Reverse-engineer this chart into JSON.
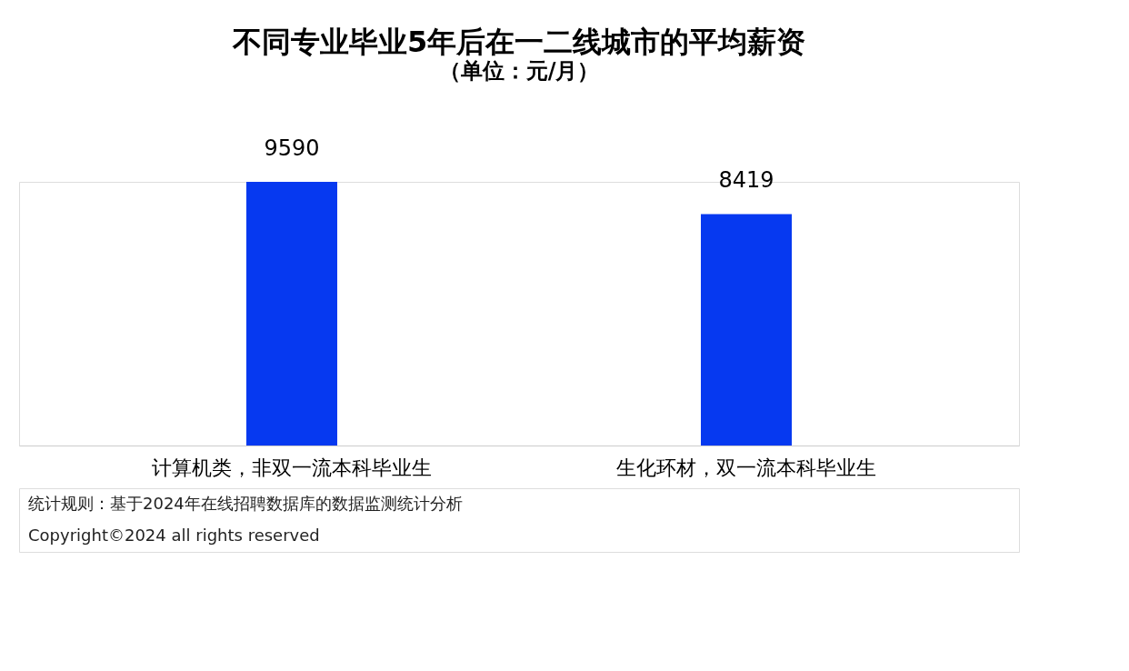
{
  "chart_data": {
    "type": "bar",
    "title": "不同专业毕业5年后在一二线城市的平均薪资",
    "subtitle": "（单位：元/月）",
    "categories": [
      "计算机类，非双一流本科毕业生",
      "生化环材，双一流本科毕业生"
    ],
    "values": [
      9590,
      8419
    ],
    "color": "#0639f0",
    "data_labels": true,
    "grid": false,
    "annotations": [
      "统计规则：基于2024年在线招聘数据库的数据监测统计分析",
      "Copyright©2024 all rights reserved"
    ]
  }
}
